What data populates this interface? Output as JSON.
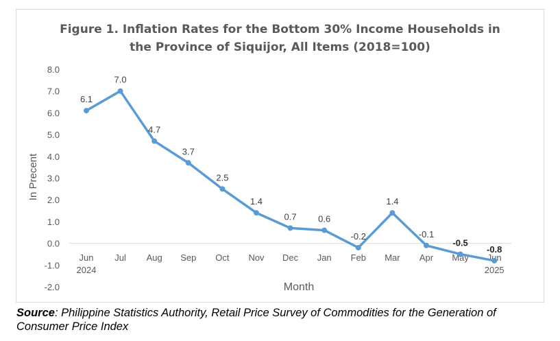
{
  "chart_data": {
    "type": "line",
    "title_line1": "Figure 1. Inflation Rates for the Bottom 30% Income Households in",
    "title_line2": "the Province of Siquijor,  All Items (2018=100)",
    "xlabel": "Month",
    "ylabel": "In Precent",
    "ylim": [
      -2.0,
      8.0
    ],
    "yticks": [
      "8.0",
      "7.0",
      "6.0",
      "5.0",
      "4.0",
      "3.0",
      "2.0",
      "1.0",
      "0.0",
      "-1.0",
      "-2.0"
    ],
    "categories": [
      "Jun",
      "Jul",
      "Aug",
      "Sep",
      "Oct",
      "Nov",
      "Dec",
      "Jan",
      "Feb",
      "Mar",
      "Apr",
      "May",
      "Jun"
    ],
    "year_labels": [
      "2024",
      "",
      "",
      "",
      "",
      "",
      "",
      "",
      "",
      "",
      "",
      "",
      "2025"
    ],
    "values": [
      6.1,
      7.0,
      4.7,
      3.7,
      2.5,
      1.4,
      0.7,
      0.6,
      -0.2,
      1.4,
      -0.1,
      -0.5,
      -0.8
    ],
    "value_labels": [
      "6.1",
      "7.0",
      "4.7",
      "3.7",
      "2.5",
      "1.4",
      "0.7",
      "0.6",
      "-0.2",
      "1.4",
      "-0.1",
      "-0.5",
      "-0.8"
    ],
    "grid": false,
    "line_color": "#5b9bd5"
  },
  "source": {
    "label": "Source",
    "text": ": Philippine Statistics Authority, Retail Price Survey of Commodities for the Generation of Consumer Price Index"
  }
}
